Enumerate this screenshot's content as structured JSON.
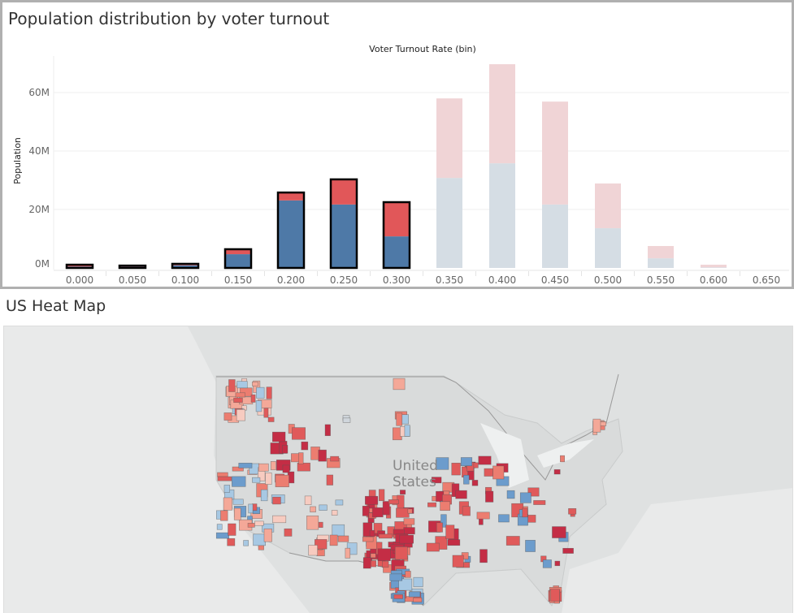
{
  "chart_title": "Population distribution by voter turnout",
  "map_title": "US Heat Map",
  "map_label": [
    "United",
    "States"
  ],
  "chart_data": {
    "type": "bar",
    "stacked": true,
    "xlabel": "Voter Turnout Rate (bin)",
    "ylabel": "Population",
    "categories": [
      "0.000",
      "0.050",
      "0.100",
      "0.150",
      "0.200",
      "0.250",
      "0.300",
      "0.350",
      "0.400",
      "0.450",
      "0.500",
      "0.550",
      "0.600",
      "0.650"
    ],
    "series": [
      {
        "values": [
          0.5,
          0.4,
          0.9,
          4.7,
          23.1,
          21.7,
          10.8,
          30.8,
          35.8,
          21.7,
          13.6,
          3.3,
          0.2,
          0
        ],
        "color": "#4e79a7",
        "faded_color": "#d5dde4"
      },
      {
        "values": [
          0.6,
          0.4,
          0.5,
          1.7,
          2.7,
          8.6,
          11.7,
          27.2,
          33.9,
          35.2,
          15.3,
          4.2,
          0.9,
          0
        ],
        "color": "#e15759",
        "faded_color": "#f0d4d6"
      }
    ],
    "selected_categories": [
      "0.000",
      "0.050",
      "0.100",
      "0.150",
      "0.200",
      "0.250",
      "0.300"
    ],
    "yticks": [
      "0M",
      "20M",
      "40M",
      "60M"
    ],
    "ytick_values": [
      0,
      20,
      40,
      60
    ],
    "ylim": [
      0,
      73
    ],
    "unit": "M",
    "grid": true
  }
}
